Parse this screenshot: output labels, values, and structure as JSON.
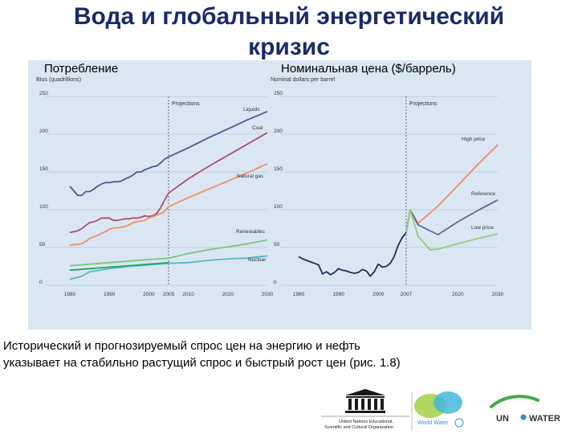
{
  "slide": {
    "title_line1": "Вода и глобальный энергетический",
    "title_line2": "кризис",
    "caption_line1": "Исторический и прогнозируемый спрос цен на энергию и нефть",
    "caption_line2": "указывает на стабильно растущий спрос и быстрый рост цен (рис. 1.8)"
  },
  "logos": {
    "unesco_line1": "United Nations Educational,",
    "unesco_line2": "Scientific and Cultural Organization",
    "wwap": "World Water",
    "unwater_left": "UN",
    "unwater_right": "WATER"
  },
  "chart_data": [
    {
      "type": "line",
      "title": "Потребление",
      "ylabel": "Btus (quadrillions)",
      "projection_label": "Projections",
      "projection_start": 2005,
      "xlim": [
        1980,
        2030
      ],
      "ylim": [
        0,
        250
      ],
      "xticks": [
        1980,
        1990,
        2000,
        2005,
        2010,
        2020,
        2030
      ],
      "yticks": [
        0,
        50,
        100,
        150,
        200,
        250
      ],
      "series": [
        {
          "name": "Liquids",
          "color": "#4a5a8a",
          "x": [
            1980,
            1981,
            1982,
            1983,
            1984,
            1985,
            1986,
            1987,
            1988,
            1989,
            1990,
            1991,
            1992,
            1993,
            1994,
            1995,
            1996,
            1997,
            1998,
            1999,
            2000,
            2001,
            2002,
            2003,
            2004,
            2005,
            2010,
            2015,
            2020,
            2025,
            2030
          ],
          "y": [
            131,
            125,
            119,
            119,
            124,
            124,
            127,
            131,
            134,
            136,
            136,
            137,
            137,
            138,
            141,
            143,
            146,
            150,
            150,
            153,
            155,
            157,
            158,
            162,
            167,
            170,
            182,
            195,
            207,
            219,
            230
          ]
        },
        {
          "name": "Coal",
          "color": "#a8506a",
          "x": [
            1980,
            1981,
            1982,
            1983,
            1984,
            1985,
            1986,
            1987,
            1988,
            1989,
            1990,
            1991,
            1992,
            1993,
            1994,
            1995,
            1996,
            1997,
            1998,
            1999,
            2000,
            2001,
            2002,
            2003,
            2004,
            2005,
            2010,
            2015,
            2020,
            2025,
            2030
          ],
          "y": [
            70,
            71,
            72,
            75,
            79,
            83,
            84,
            86,
            89,
            89,
            89,
            86,
            86,
            87,
            88,
            88,
            89,
            89,
            90,
            92,
            91,
            92,
            95,
            103,
            113,
            122,
            141,
            157,
            172,
            187,
            202
          ]
        },
        {
          "name": "Natural gas",
          "color": "#ef9066",
          "x": [
            1980,
            1981,
            1982,
            1983,
            1984,
            1985,
            1986,
            1987,
            1988,
            1989,
            1990,
            1991,
            1992,
            1993,
            1994,
            1995,
            1996,
            1997,
            1998,
            1999,
            2000,
            2001,
            2002,
            2003,
            2004,
            2005,
            2010,
            2015,
            2020,
            2025,
            2030
          ],
          "y": [
            53,
            54,
            54,
            55,
            58,
            62,
            64,
            66,
            69,
            71,
            74,
            76,
            76,
            77,
            78,
            80,
            83,
            84,
            85,
            86,
            89,
            91,
            93,
            95,
            98,
            104,
            116,
            127,
            138,
            149,
            161
          ]
        },
        {
          "name": "Renewables",
          "color": "#7dc47a",
          "x": [
            1980,
            1985,
            1990,
            1995,
            2000,
            2005,
            2010,
            2015,
            2020,
            2025,
            2030
          ],
          "y": [
            26,
            28,
            30,
            32,
            34,
            36,
            42,
            47,
            51,
            55,
            60
          ]
        },
        {
          "name": "Nuclear",
          "color": "#58b7c6",
          "x": [
            1980,
            1983,
            1985,
            1990,
            1995,
            2000,
            2005,
            2010,
            2015,
            2020,
            2025,
            2030
          ],
          "y": [
            8,
            12,
            18,
            22,
            25,
            27,
            29,
            30,
            33,
            35,
            36,
            39
          ]
        },
        {
          "name": "",
          "color": "#1fa860",
          "x": [
            1980,
            1985,
            1990,
            1995,
            2000,
            2005
          ],
          "y": [
            20,
            22,
            24,
            26,
            28,
            30
          ]
        }
      ]
    },
    {
      "type": "line",
      "title": "Номинальная цена ($/баррель)",
      "ylabel": "Nominal dollars per barrel",
      "projection_label": "Projections",
      "projection_start": 2007,
      "xlim": [
        1980,
        2030
      ],
      "ylim": [
        0,
        250
      ],
      "xticks": [
        1980,
        1990,
        2000,
        2007,
        2020,
        2030
      ],
      "yticks": [
        0,
        50,
        100,
        150,
        200,
        250
      ],
      "series": [
        {
          "name": "",
          "color": "#1e2f55",
          "x": [
            1980,
            1981,
            1982,
            1983,
            1984,
            1985,
            1986,
            1987,
            1988,
            1989,
            1990,
            1991,
            1992,
            1993,
            1994,
            1995,
            1996,
            1997,
            1998,
            1999,
            2000,
            2001,
            2002,
            2003,
            2004,
            2005,
            2006,
            2007
          ],
          "y": [
            38,
            35,
            33,
            31,
            29,
            27,
            15,
            18,
            14,
            17,
            22,
            20,
            19,
            17,
            16,
            17,
            21,
            19,
            12,
            18,
            28,
            24,
            25,
            29,
            38,
            53,
            63,
            70
          ]
        },
        {
          "name": "High price",
          "color": "#f08a6e",
          "x": [
            2007,
            2008,
            2010,
            2015,
            2020,
            2025,
            2030
          ],
          "y": [
            70,
            100,
            82,
            105,
            132,
            160,
            186
          ]
        },
        {
          "name": "Reference",
          "color": "#5a6a8e",
          "x": [
            2007,
            2008,
            2010,
            2015,
            2020,
            2025,
            2030
          ],
          "y": [
            70,
            100,
            80,
            67,
            84,
            99,
            113
          ]
        },
        {
          "name": "Low price",
          "color": "#8dcd7e",
          "x": [
            2007,
            2008,
            2010,
            2013,
            2015,
            2020,
            2025,
            2030
          ],
          "y": [
            70,
            100,
            65,
            47,
            48,
            55,
            62,
            68
          ]
        }
      ]
    }
  ]
}
